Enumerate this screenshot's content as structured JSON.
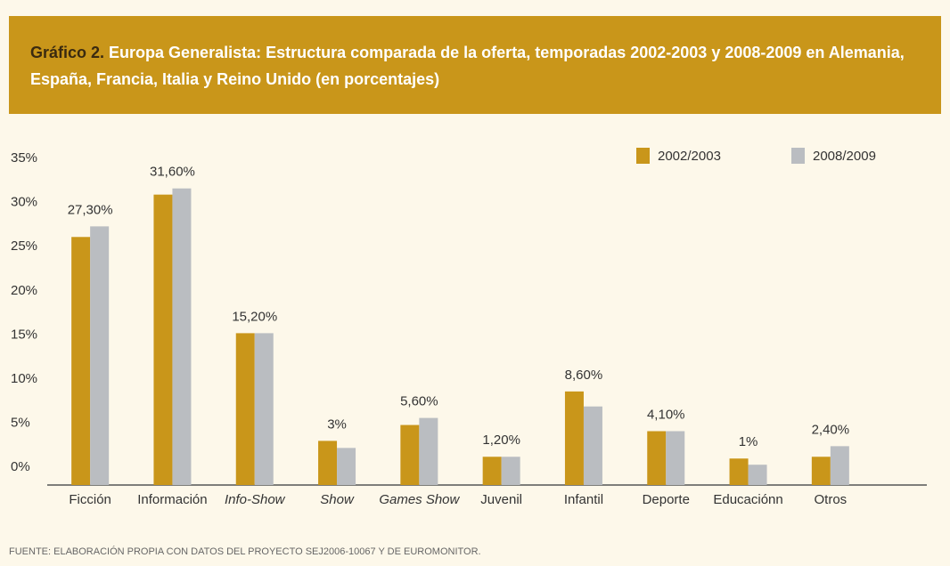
{
  "chart_data": {
    "type": "bar",
    "title_label": "Gráfico 2.",
    "title": "Europa Generalista: Estructura comparada de la oferta, temporadas 2002-2003 y 2008-2009 en Alemania, España, Francia, Italia y Reino Unido (en porcentajes)",
    "source": "FUENTE: ELABORACIÓN PROPIA CON DATOS DEL PROYECTO SEJ2006-10067 Y DE EUROMONITOR.",
    "categories": [
      "Ficción",
      "Información",
      "Info-Show",
      "Show",
      "Games Show",
      "Juvenil",
      "Infantil",
      "Deporte",
      "Educaciónn",
      "Otros"
    ],
    "series": [
      {
        "name": "2002/2003",
        "color": "#c9961a",
        "values": [
          26.1,
          30.9,
          15.2,
          3,
          4.8,
          1.2,
          8.6,
          4.1,
          1,
          1.2
        ],
        "value_labels": [
          null,
          null,
          null,
          "3%",
          null,
          null,
          "8,60%",
          null,
          "1%",
          null
        ]
      },
      {
        "name": "2008/2009",
        "color": "#babdc1",
        "values": [
          27.3,
          31.6,
          15.2,
          2.2,
          5.6,
          1.2,
          6.9,
          4.1,
          0.3,
          2.4
        ],
        "value_labels": [
          "27,30%",
          "31,60%",
          "15,20%",
          null,
          "5,60%",
          "1,20%",
          null,
          "4,10%",
          null,
          "2,40%"
        ]
      }
    ],
    "ylim": [
      -2,
      35
    ],
    "yticks": [
      {
        "value": 0,
        "label": "0%"
      },
      {
        "value": 5,
        "label": "5%"
      },
      {
        "value": 10,
        "label": "10%"
      },
      {
        "value": 15,
        "label": "15%"
      },
      {
        "value": 20,
        "label": "20%"
      },
      {
        "value": 25,
        "label": "25%"
      },
      {
        "value": 30,
        "label": "30%"
      },
      {
        "value": 35,
        "label": "35%"
      }
    ],
    "grid": false,
    "legend": "top-right"
  }
}
